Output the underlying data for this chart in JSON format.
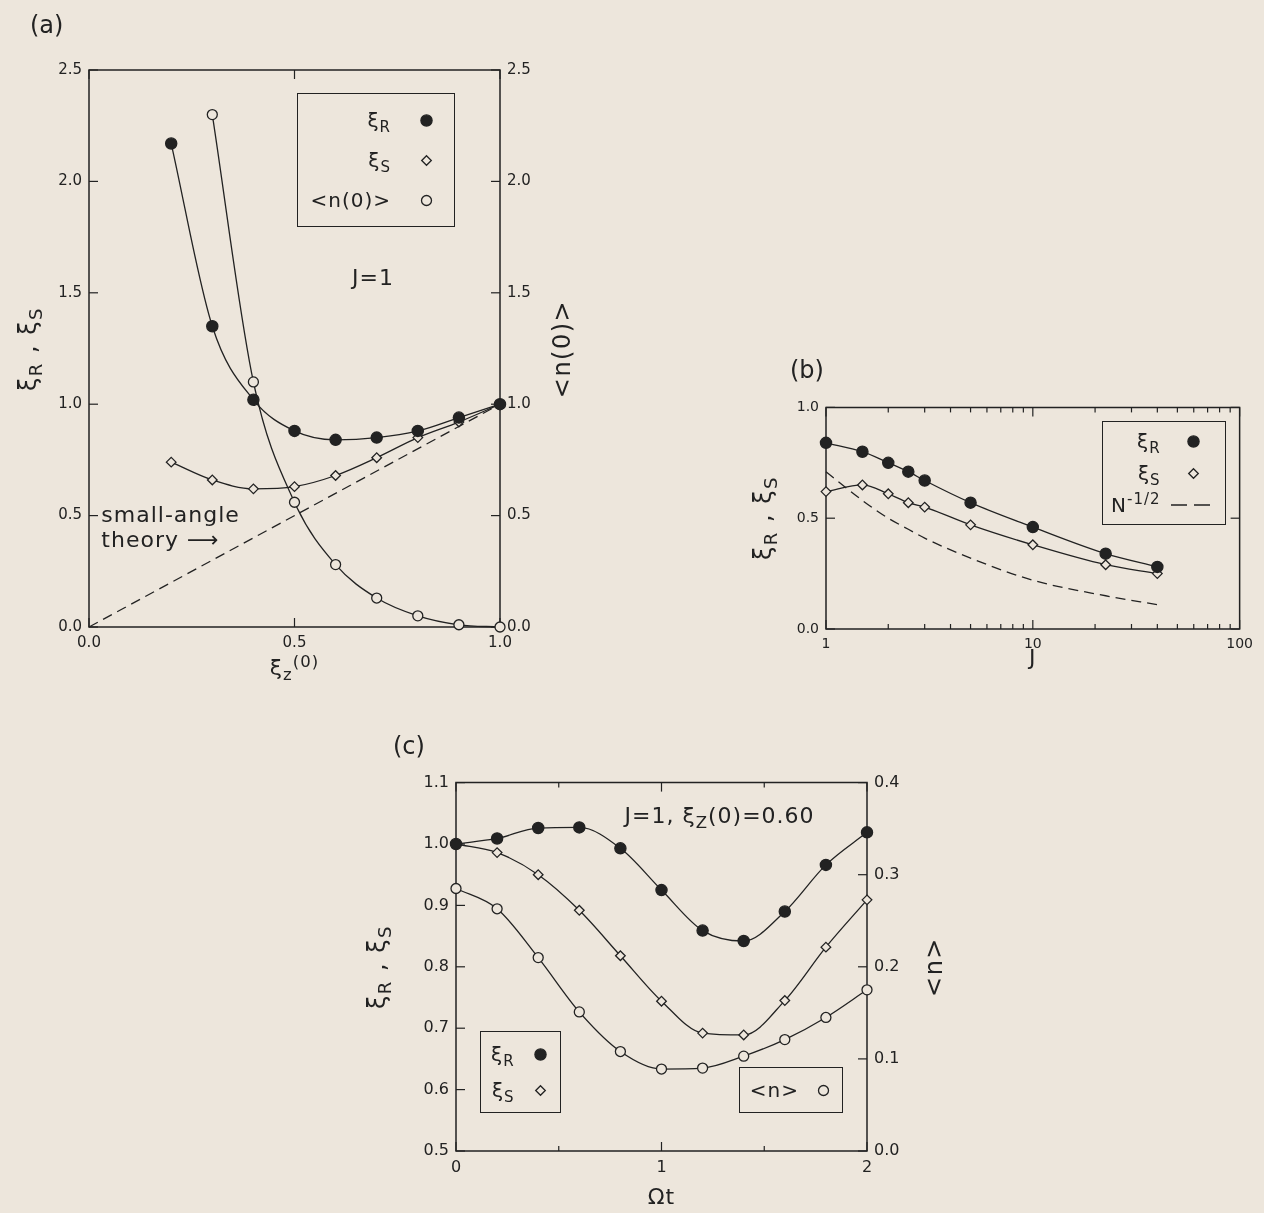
{
  "chart_data": [
    {
      "type": "line",
      "title": "(a)",
      "xlabel": "ξ$_{z}$$^{(0)}$",
      "ylabel": "ξ$_{R}$ , ξ$_{S}$",
      "y2label": "<n(0)>",
      "xlim": [
        0,
        1
      ],
      "xticks": [
        {
          "value": 0,
          "label": "0.0"
        },
        0.5,
        {
          "value": 1,
          "label": "1.0"
        }
      ],
      "ylim": [
        0,
        2.5
      ],
      "yticks": [
        {
          "value": 0,
          "label": "0.0"
        },
        0.5,
        {
          "value": 1,
          "label": "1.0"
        },
        1.5,
        {
          "value": 2,
          "label": "2.0"
        },
        2.5
      ],
      "y2lim": [
        0,
        2.5
      ],
      "y2ticks": [
        {
          "value": 0,
          "label": "0.0"
        },
        0.5,
        {
          "value": 1,
          "label": "1.0"
        },
        1.5,
        {
          "value": 2,
          "label": "2.0"
        },
        2.5
      ],
      "legend": "top right",
      "line_style": "solid",
      "x": [
        0.2,
        0.3,
        0.4,
        0.5,
        0.6,
        0.7,
        0.8,
        0.9,
        1.0
      ],
      "series": [
        {
          "name": "ξ$_{R}$",
          "color": "#222222",
          "marker": "circle",
          "values": [
            2.17,
            1.35,
            1.02,
            0.88,
            0.84,
            0.85,
            0.88,
            0.94,
            1.0
          ]
        },
        {
          "name": "ξ$_{S}$",
          "color": "#222222",
          "marker": "diamond-open",
          "values": [
            0.74,
            0.66,
            0.62,
            0.63,
            0.68,
            0.76,
            0.85,
            0.92,
            1.0
          ]
        },
        {
          "name": "<n(0)>",
          "color": "#222222",
          "marker": "circle-open",
          "axis": "y2",
          "values": [
            null,
            2.3,
            1.1,
            0.56,
            0.28,
            0.13,
            0.05,
            0.01,
            0.0
          ]
        },
        {
          "type": "line",
          "color": "#222222",
          "marker": "none",
          "line_style": "dashed",
          "x": [
            0,
            1
          ],
          "values": [
            0,
            1
          ]
        }
      ],
      "annotations": [
        "J=1",
        "small-angle\ntheory ⟶"
      ]
    },
    {
      "type": "line",
      "title": "(b)",
      "xlabel": "J",
      "ylabel": "ξ$_{R}$ , ξ$_{S}$",
      "log": "x",
      "xlim": [
        1,
        100
      ],
      "xticks": [
        1,
        {
          "value": 2,
          "label": null
        },
        {
          "value": 3,
          "label": null
        },
        {
          "value": 4,
          "label": null
        },
        {
          "value": 5,
          "label": null
        },
        {
          "value": 6,
          "label": null
        },
        {
          "value": 7,
          "label": null
        },
        {
          "value": 8,
          "label": null
        },
        {
          "value": 9,
          "label": null
        },
        10,
        {
          "value": 20,
          "label": null
        },
        {
          "value": 30,
          "label": null
        },
        {
          "value": 40,
          "label": null
        },
        {
          "value": 50,
          "label": null
        },
        {
          "value": 60,
          "label": null
        },
        {
          "value": 70,
          "label": null
        },
        {
          "value": 80,
          "label": null
        },
        {
          "value": 90,
          "label": null
        },
        100
      ],
      "ylim": [
        0,
        1
      ],
      "yticks": [
        {
          "value": 0,
          "label": "0.0"
        },
        0.5,
        {
          "value": 1,
          "label": "1.0"
        }
      ],
      "legend": "top right",
      "line_style": "solid",
      "x": [
        1,
        1.5,
        2,
        2.5,
        3,
        5,
        10,
        22.5,
        40
      ],
      "series": [
        {
          "name": "ξ$_{R}$",
          "color": "#222222",
          "marker": "circle",
          "values": [
            0.84,
            0.8,
            0.75,
            0.71,
            0.67,
            0.57,
            0.46,
            0.34,
            0.28
          ]
        },
        {
          "name": "ξ$_{S}$",
          "color": "#222222",
          "marker": "diamond-open",
          "values": [
            0.62,
            0.65,
            0.61,
            0.57,
            0.55,
            0.47,
            0.38,
            0.29,
            0.25
          ]
        },
        {
          "name": "N$^{-1/2}$",
          "color": "#222222",
          "marker": "none",
          "line_style": "dashed",
          "values": [
            0.71,
            0.58,
            0.5,
            0.45,
            0.41,
            0.32,
            0.22,
            0.15,
            0.11
          ]
        }
      ]
    },
    {
      "type": "line",
      "title": "(c)",
      "xlabel": "Ωt",
      "ylabel": "ξ$_{R}$ , ξ$_{S}$",
      "y2label": "<n>",
      "xlim": [
        0,
        2
      ],
      "xticks": [
        0,
        {
          "value": 0.5,
          "label": null
        },
        1,
        {
          "value": 1.5,
          "label": null
        },
        2
      ],
      "ylim": [
        0.5,
        1.1
      ],
      "yticks": [
        0.5,
        0.6,
        0.7,
        0.8,
        0.9,
        {
          "value": 1,
          "label": "1.0"
        },
        1.1
      ],
      "y2lim": [
        0,
        0.4
      ],
      "y2ticks": [
        {
          "value": 0,
          "label": "0.0"
        },
        0.1,
        0.2,
        0.3,
        0.4
      ],
      "legend": "bottom left",
      "line_style": "solid",
      "x": [
        0,
        0.2,
        0.4,
        0.6,
        0.8,
        1,
        1.2,
        1.4,
        1.6,
        1.8,
        2
      ],
      "series": [
        {
          "name": "ξ$_{R}$",
          "color": "#222222",
          "marker": "circle",
          "values": [
            1.0,
            1.009,
            1.026,
            1.027,
            0.993,
            0.925,
            0.859,
            0.842,
            0.89,
            0.966,
            1.019
          ]
        },
        {
          "name": "ξ$_{S}$",
          "color": "#222222",
          "marker": "diamond-open",
          "values": [
            1.0,
            0.986,
            0.95,
            0.892,
            0.818,
            0.744,
            0.692,
            0.689,
            0.745,
            0.832,
            0.909
          ]
        },
        {
          "name": "<n>",
          "color": "#222222",
          "marker": "circle-open",
          "axis": "y2",
          "values": [
            0.285,
            0.263,
            0.21,
            0.151,
            0.108,
            0.089,
            0.09,
            0.103,
            0.121,
            0.145,
            0.175
          ]
        }
      ],
      "annotations": [
        "J=1, ξ$_{Z}$(0)=0.60"
      ]
    }
  ]
}
